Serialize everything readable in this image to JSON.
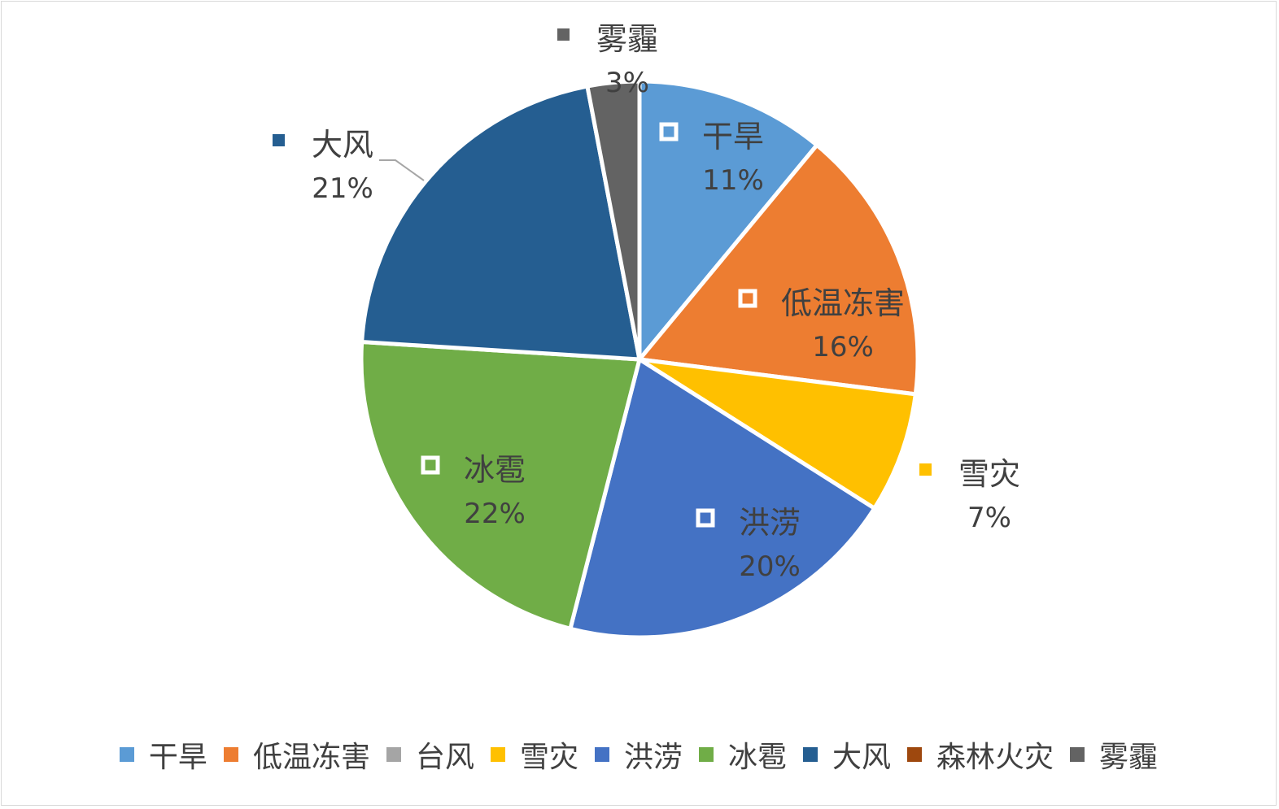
{
  "chart_data": {
    "type": "pie",
    "categories": [
      "干旱",
      "低温冻害",
      "台风",
      "雪灾",
      "洪涝",
      "冰雹",
      "大风",
      "森林火灾",
      "雾霾"
    ],
    "values": [
      11,
      16,
      0,
      7,
      20,
      22,
      21,
      0,
      3
    ],
    "value_labels": [
      "11%",
      "16%",
      "",
      "7%",
      "20%",
      "22%",
      "21%",
      "",
      "3%"
    ],
    "colors": [
      "#5b9bd5",
      "#ed7d31",
      "#a5a5a5",
      "#ffc000",
      "#4472c4",
      "#70ad47",
      "#255e91",
      "#9e480e",
      "#636363"
    ],
    "legend_position": "bottom",
    "title": ""
  }
}
